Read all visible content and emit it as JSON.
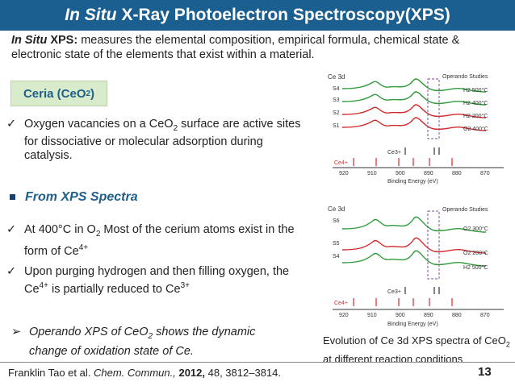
{
  "title": {
    "italic": "In Situ",
    "rest": "X-Ray Photoelectron Spectroscopy(XPS)"
  },
  "intro": {
    "lead_italic": "In Situ",
    "lead_bold": " XPS:",
    "text": " measures the elemental composition, empirical formula, chemical state & electronic state of the elements that exist within a material."
  },
  "ceria_box": {
    "label": "Ceria (CeO",
    "sub": "2",
    "close": ")"
  },
  "bullet1": {
    "a": "Oxygen vacancies on a CeO",
    "sub": "2",
    "b": " surface are active sites for dissociative or molecular adsorption during catalysis."
  },
  "xps_heading": "From XPS Spectra",
  "bullet2": {
    "a": "At 400°C in O",
    "sub": "2",
    "b": " Most of the cerium atoms exist in the form of Ce",
    "sup": "4+"
  },
  "bullet3": {
    "a": "Upon purging hydrogen and then filling oxygen, the Ce",
    "sup1": "4+",
    "b": " is partially reduced to Ce",
    "sup2": "3+"
  },
  "operando": {
    "a": "Operando XPS of CeO",
    "sub": "2",
    "b": " shows the dynamic change of oxidation state of Ce."
  },
  "caption": {
    "a": "Evolution of Ce 3d XPS spectra of CeO",
    "sub": "2",
    "b": " at different reaction conditions"
  },
  "citation": {
    "author": "Franklin Tao et al. ",
    "journal": "Chem. Commun.,",
    "year": " 2012,",
    "rest": " 48, 3812–3814."
  },
  "page_number": "13",
  "figure_top": {
    "corner_label": "Ce 3d",
    "header": "Operando Studies",
    "samples": [
      "S4",
      "S3",
      "S2",
      "S1"
    ],
    "conditions": [
      "H2 500°C",
      "H2 400°C",
      "H2 200°C",
      "O2 400°C"
    ],
    "ce3": "Ce3+",
    "ce4": "Ce4+",
    "ticks": [
      "920",
      "910",
      "900",
      "890",
      "880",
      "870"
    ],
    "xlabel": "Binding Energy (eV)"
  },
  "figure_bottom": {
    "corner_label": "Ce 3d",
    "header": "Operando Studies",
    "samples": [
      "S6",
      "S5",
      "S4"
    ],
    "conditions": [
      "O2 300°C",
      "O2 200°C",
      "H2 500°C"
    ],
    "ce3": "Ce3+",
    "ce4": "Ce4+",
    "ticks": [
      "920",
      "910",
      "900",
      "890",
      "880",
      "870"
    ],
    "xlabel": "Binding Energy (eV)"
  },
  "colors": {
    "title_bar": "#1b5f90",
    "heading_blue": "#1f5f8b",
    "ceria_box": "#d8ebcb",
    "green": "#2e9a3a",
    "red": "#d22b2b",
    "purple": "#7b4f9e"
  }
}
